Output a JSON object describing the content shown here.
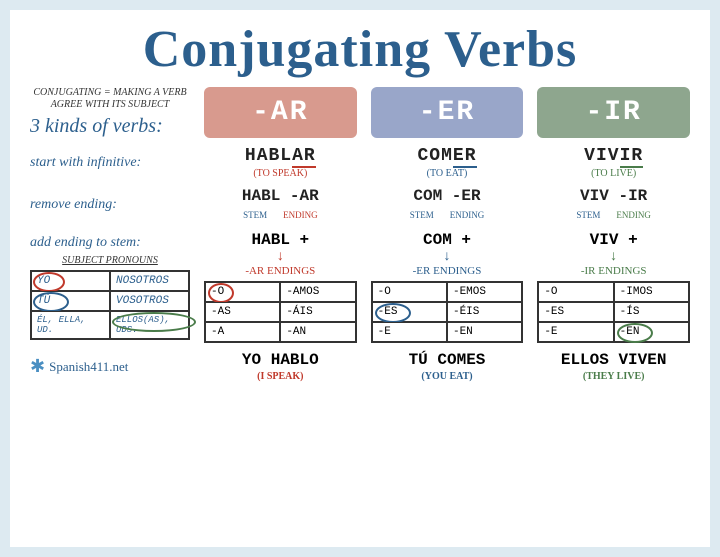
{
  "title": "Conjugating Verbs",
  "definition": "CONJUGATING =\nMAKING A VERB AGREE\nWITH ITS SUBJECT",
  "kinds": "3 kinds of verbs:",
  "headers": {
    "ar": "-AR",
    "er": "-ER",
    "ir": "-IR"
  },
  "header_colors": {
    "ar": "#d89a8e",
    "er": "#99a6c9",
    "ir": "#8ea68e"
  },
  "accent_colors": {
    "ar": "#c0392b",
    "er": "#2c5f8d",
    "ir": "#4a7c4a"
  },
  "row_labels": {
    "infinitive": "start with infinitive:",
    "remove": "remove ending:",
    "add": "add ending to stem:",
    "subj": "SUBJECT PRONOUNS"
  },
  "infinitives": {
    "ar": {
      "word": "HABL",
      "end": "AR",
      "trans": "(TO SPEAK)"
    },
    "er": {
      "word": "COM",
      "end": "ER",
      "trans": "(TO EAT)"
    },
    "ir": {
      "word": "VIV",
      "end": "IR",
      "trans": "(TO LIVE)"
    }
  },
  "remove": {
    "ar": {
      "stem": "HABL",
      "end": "-AR"
    },
    "er": {
      "stem": "COM",
      "end": "-ER"
    },
    "ir": {
      "stem": "VIV",
      "end": "-IR"
    },
    "stem_lbl": "STEM",
    "end_lbl": "ENDING"
  },
  "add": {
    "ar": {
      "stem": "HABL +",
      "lbl": "-AR ENDINGS"
    },
    "er": {
      "stem": "COM +",
      "lbl": "-ER ENDINGS"
    },
    "ir": {
      "stem": "VIV +",
      "lbl": "-IR ENDINGS"
    }
  },
  "pronouns": [
    "YO",
    "NOSOTROS",
    "TÚ",
    "VOSOTROS",
    "ÉL, ELLA, UD.",
    "ELLOS(AS), UDS."
  ],
  "endings": {
    "ar": [
      "-O",
      "-AMOS",
      "-AS",
      "-ÁIS",
      "-A",
      "-AN"
    ],
    "er": [
      "-O",
      "-EMOS",
      "-ES",
      "-ÉIS",
      "-E",
      "-EN"
    ],
    "ir": [
      "-O",
      "-IMOS",
      "-ES",
      "-ÍS",
      "-E",
      "-EN"
    ]
  },
  "circled": {
    "pronouns": [
      0,
      2,
      5
    ],
    "ar": 0,
    "er": 2,
    "ir": 5
  },
  "brand": "Spanish411.net",
  "finals": {
    "ar": {
      "text": "YO HABLO",
      "trans": "(I SPEAK)"
    },
    "er": {
      "text": "TÚ COMES",
      "trans": "(YOU EAT)"
    },
    "ir": {
      "text": "ELLOS VIVEN",
      "trans": "(THEY LIVE)"
    }
  }
}
